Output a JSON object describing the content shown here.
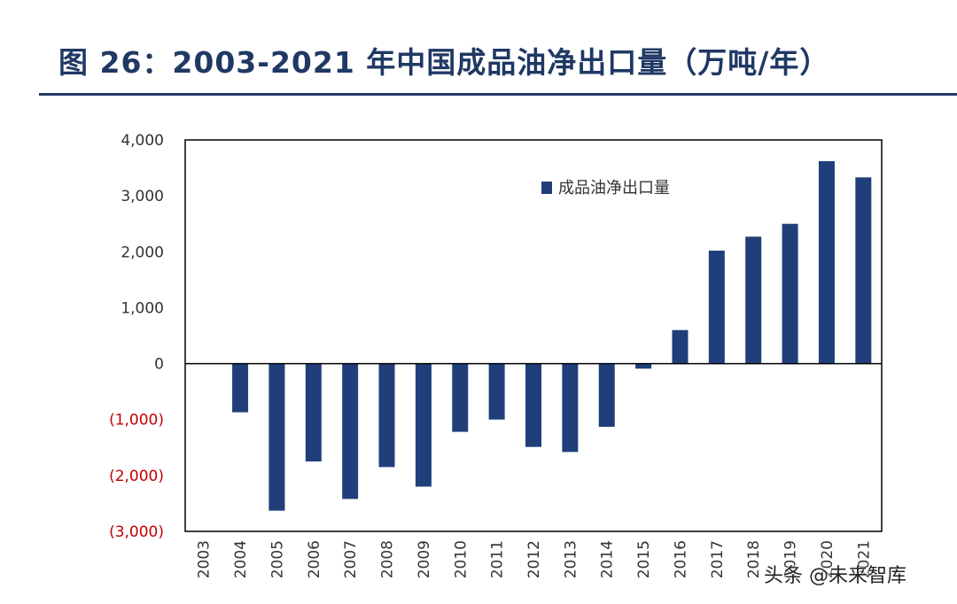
{
  "chart_data": {
    "type": "bar",
    "title": "图 26：2003-2021 年中国成品油净出口量（万吨/年）",
    "categories": [
      "2003",
      "2004",
      "2005",
      "2006",
      "2007",
      "2008",
      "2009",
      "2010",
      "2011",
      "2012",
      "2013",
      "2014",
      "2015",
      "2016",
      "2017",
      "2018",
      "2019",
      "2020",
      "2021"
    ],
    "series": [
      {
        "name": "成品油净出口量",
        "color": "#203f7a",
        "values": [
          0,
          -870,
          -2630,
          -1750,
          -2420,
          -1850,
          -2200,
          -1220,
          -1000,
          -1490,
          -1580,
          -1130,
          -90,
          600,
          2020,
          2270,
          2500,
          3620,
          3330
        ]
      }
    ],
    "ylim": [
      -3000,
      4000
    ],
    "yticks": [
      4000,
      3000,
      2000,
      1000,
      0,
      -1000,
      -2000,
      -3000
    ],
    "ytick_labels": [
      "4,000",
      "3,000",
      "2,000",
      "1,000",
      "0",
      "(1,000)",
      "(2,000)",
      "(3,000)"
    ],
    "negative_label_color": "#c00000",
    "legend_position": "top-center",
    "grid": false
  },
  "watermark": "头条 @未来智库"
}
